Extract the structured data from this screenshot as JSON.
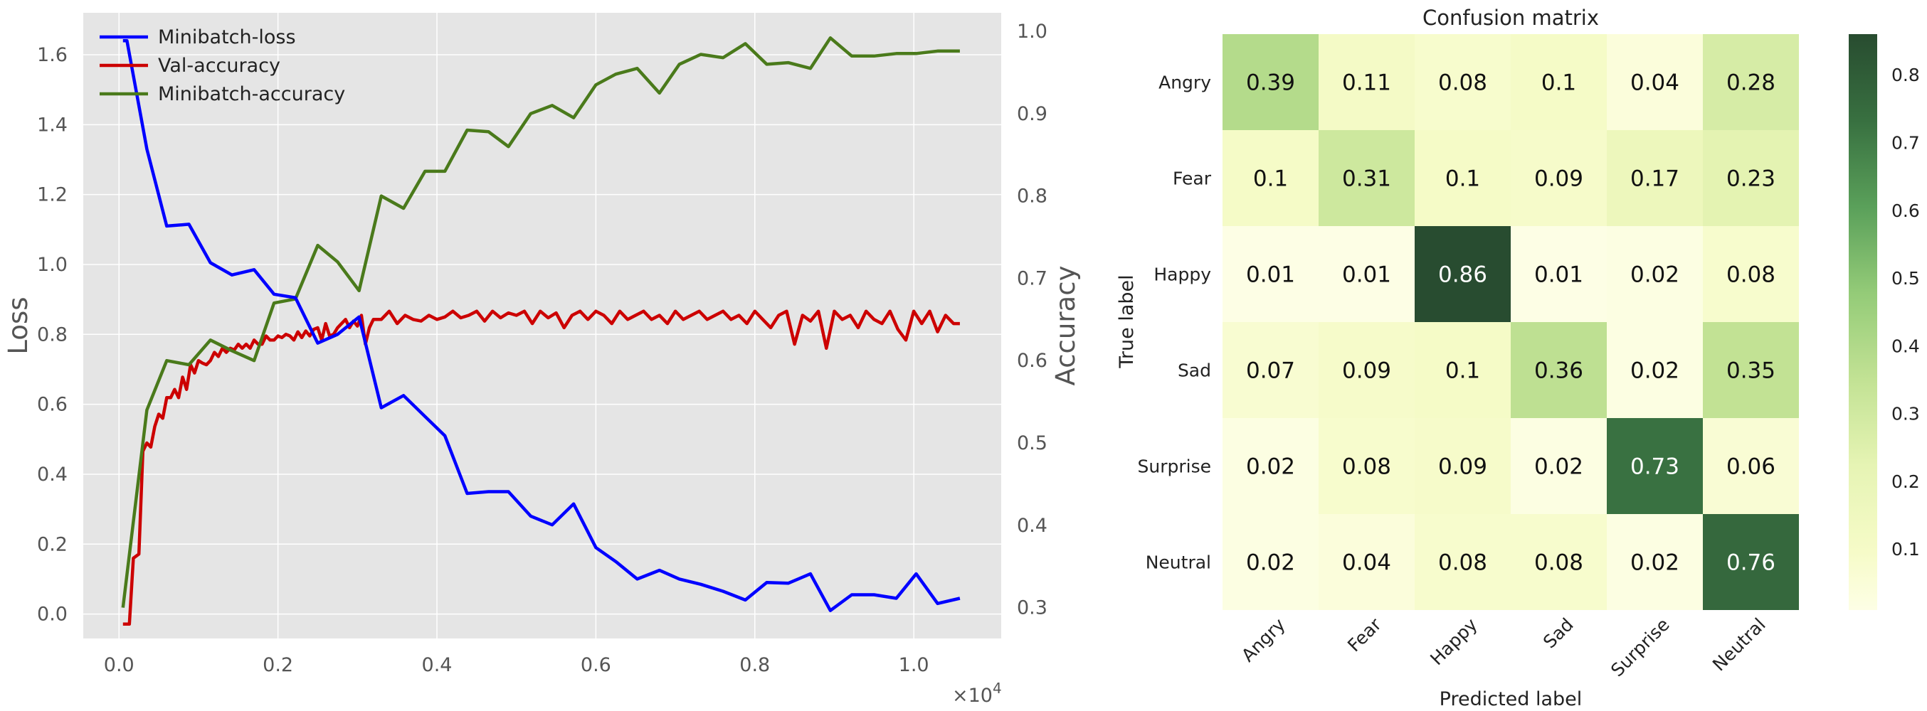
{
  "chart_data": [
    {
      "type": "line",
      "xlabel": "",
      "x_scale_label": "×10",
      "x_scale_exponent": "4",
      "ylabel": "Loss",
      "y2label": "Accuracy",
      "xlim": [
        -0.045,
        1.11
      ],
      "ylim": [
        -0.07,
        1.72
      ],
      "y2lim": [
        0.2625,
        1.0225
      ],
      "xticks": [
        0.0,
        0.2,
        0.4,
        0.6,
        0.8,
        1.0
      ],
      "xtick_labels": [
        "0.0",
        "0.2",
        "0.4",
        "0.6",
        "0.8",
        "1.0"
      ],
      "yticks": [
        0.0,
        0.2,
        0.4,
        0.6,
        0.8,
        1.0,
        1.2,
        1.4,
        1.6
      ],
      "ytick_labels": [
        "0.0",
        "0.2",
        "0.4",
        "0.6",
        "0.8",
        "1.0",
        "1.2",
        "1.4",
        "1.6"
      ],
      "y2ticks": [
        0.3,
        0.4,
        0.5,
        0.6,
        0.7,
        0.8,
        0.9,
        1.0
      ],
      "y2tick_labels": [
        "0.3",
        "0.4",
        "0.5",
        "0.6",
        "0.7",
        "0.8",
        "0.9",
        "1.0"
      ],
      "legend": "top-left",
      "series": [
        {
          "name": "Minibatch-loss",
          "axis": "left",
          "color": "#0000ff",
          "x": [
            0.005,
            0.01,
            0.035,
            0.06,
            0.088,
            0.115,
            0.142,
            0.17,
            0.195,
            0.222,
            0.25,
            0.275,
            0.302,
            0.33,
            0.358,
            0.385,
            0.41,
            0.438,
            0.465,
            0.49,
            0.518,
            0.545,
            0.572,
            0.6,
            0.625,
            0.652,
            0.68,
            0.705,
            0.732,
            0.76,
            0.788,
            0.815,
            0.842,
            0.87,
            0.895,
            0.922,
            0.95,
            0.978,
            1.003,
            1.03,
            1.058
          ],
          "values": [
            1.64,
            1.64,
            1.33,
            1.11,
            1.115,
            1.005,
            0.97,
            0.985,
            0.915,
            0.905,
            0.775,
            0.8,
            0.85,
            0.59,
            0.625,
            0.565,
            0.51,
            0.345,
            0.35,
            0.35,
            0.28,
            0.255,
            0.315,
            0.19,
            0.15,
            0.1,
            0.125,
            0.1,
            0.085,
            0.065,
            0.04,
            0.09,
            0.088,
            0.115,
            0.01,
            0.055,
            0.055,
            0.045,
            0.115,
            0.03,
            0.045
          ]
        },
        {
          "name": "Val-accuracy",
          "axis": "right",
          "color": "#cc0000",
          "x": [
            0.005,
            0.013,
            0.018,
            0.025,
            0.03,
            0.035,
            0.04,
            0.045,
            0.05,
            0.055,
            0.06,
            0.065,
            0.07,
            0.075,
            0.08,
            0.085,
            0.09,
            0.095,
            0.1,
            0.105,
            0.11,
            0.115,
            0.12,
            0.125,
            0.13,
            0.135,
            0.14,
            0.145,
            0.15,
            0.155,
            0.16,
            0.165,
            0.17,
            0.175,
            0.18,
            0.185,
            0.19,
            0.195,
            0.2,
            0.205,
            0.21,
            0.215,
            0.22,
            0.225,
            0.23,
            0.235,
            0.24,
            0.245,
            0.25,
            0.255,
            0.26,
            0.265,
            0.27,
            0.275,
            0.28,
            0.285,
            0.29,
            0.295,
            0.3,
            0.305,
            0.31,
            0.315,
            0.32,
            0.33,
            0.34,
            0.35,
            0.36,
            0.37,
            0.38,
            0.39,
            0.4,
            0.41,
            0.42,
            0.43,
            0.44,
            0.45,
            0.46,
            0.47,
            0.48,
            0.49,
            0.5,
            0.51,
            0.52,
            0.53,
            0.54,
            0.55,
            0.56,
            0.57,
            0.58,
            0.59,
            0.6,
            0.61,
            0.62,
            0.63,
            0.64,
            0.65,
            0.66,
            0.67,
            0.68,
            0.69,
            0.7,
            0.71,
            0.72,
            0.73,
            0.74,
            0.75,
            0.76,
            0.77,
            0.78,
            0.79,
            0.8,
            0.81,
            0.82,
            0.83,
            0.84,
            0.85,
            0.86,
            0.87,
            0.88,
            0.89,
            0.9,
            0.91,
            0.92,
            0.93,
            0.94,
            0.95,
            0.96,
            0.97,
            0.98,
            0.99,
            1.0,
            1.01,
            1.02,
            1.03,
            1.04,
            1.05,
            1.058
          ],
          "values": [
            0.28,
            0.28,
            0.36,
            0.365,
            0.49,
            0.5,
            0.495,
            0.52,
            0.535,
            0.53,
            0.555,
            0.555,
            0.565,
            0.555,
            0.58,
            0.565,
            0.595,
            0.585,
            0.6,
            0.597,
            0.595,
            0.6,
            0.61,
            0.605,
            0.615,
            0.61,
            0.615,
            0.613,
            0.62,
            0.615,
            0.62,
            0.615,
            0.625,
            0.62,
            0.62,
            0.63,
            0.625,
            0.625,
            0.63,
            0.628,
            0.632,
            0.63,
            0.625,
            0.635,
            0.628,
            0.636,
            0.63,
            0.638,
            0.64,
            0.625,
            0.645,
            0.63,
            0.632,
            0.64,
            0.645,
            0.65,
            0.64,
            0.648,
            0.642,
            0.655,
            0.62,
            0.64,
            0.65,
            0.65,
            0.66,
            0.645,
            0.655,
            0.65,
            0.648,
            0.655,
            0.65,
            0.653,
            0.66,
            0.652,
            0.655,
            0.66,
            0.648,
            0.66,
            0.652,
            0.658,
            0.655,
            0.66,
            0.645,
            0.66,
            0.652,
            0.658,
            0.64,
            0.655,
            0.66,
            0.65,
            0.66,
            0.655,
            0.645,
            0.66,
            0.65,
            0.655,
            0.66,
            0.65,
            0.655,
            0.645,
            0.66,
            0.65,
            0.655,
            0.66,
            0.65,
            0.655,
            0.66,
            0.65,
            0.655,
            0.645,
            0.66,
            0.65,
            0.64,
            0.655,
            0.66,
            0.62,
            0.655,
            0.648,
            0.66,
            0.615,
            0.66,
            0.65,
            0.655,
            0.64,
            0.66,
            0.65,
            0.645,
            0.66,
            0.638,
            0.625,
            0.66,
            0.645,
            0.66,
            0.635,
            0.655,
            0.645,
            0.645
          ]
        },
        {
          "name": "Minibatch-accuracy",
          "axis": "right",
          "color": "#4a7a1b",
          "x": [
            0.005,
            0.035,
            0.06,
            0.088,
            0.115,
            0.142,
            0.17,
            0.195,
            0.222,
            0.25,
            0.275,
            0.302,
            0.33,
            0.358,
            0.385,
            0.41,
            0.438,
            0.465,
            0.49,
            0.518,
            0.545,
            0.572,
            0.6,
            0.625,
            0.652,
            0.68,
            0.705,
            0.732,
            0.76,
            0.788,
            0.815,
            0.842,
            0.87,
            0.895,
            0.922,
            0.95,
            0.978,
            1.003,
            1.03,
            1.058
          ],
          "values": [
            0.3,
            0.54,
            0.6,
            0.595,
            0.625,
            0.612,
            0.6,
            0.67,
            0.675,
            0.74,
            0.72,
            0.685,
            0.8,
            0.785,
            0.83,
            0.83,
            0.88,
            0.878,
            0.86,
            0.9,
            0.91,
            0.895,
            0.935,
            0.948,
            0.955,
            0.925,
            0.96,
            0.972,
            0.968,
            0.985,
            0.96,
            0.962,
            0.955,
            0.992,
            0.97,
            0.97,
            0.973,
            0.973,
            0.976,
            0.976
          ]
        }
      ]
    },
    {
      "type": "heatmap",
      "title": "Confusion matrix",
      "xlabel": "Predicted label",
      "ylabel": "True label",
      "x_categories": [
        "Angry",
        "Fear",
        "Happy",
        "Sad",
        "Surprise",
        "Neutral"
      ],
      "y_categories": [
        "Angry",
        "Fear",
        "Happy",
        "Sad",
        "Surprise",
        "Neutral"
      ],
      "values": [
        [
          0.39,
          0.11,
          0.08,
          0.1,
          0.04,
          0.28
        ],
        [
          0.1,
          0.31,
          0.1,
          0.09,
          0.17,
          0.23
        ],
        [
          0.01,
          0.01,
          0.86,
          0.01,
          0.02,
          0.08
        ],
        [
          0.07,
          0.09,
          0.1,
          0.36,
          0.02,
          0.35
        ],
        [
          0.02,
          0.08,
          0.09,
          0.02,
          0.73,
          0.06
        ],
        [
          0.02,
          0.04,
          0.08,
          0.08,
          0.02,
          0.76
        ]
      ],
      "value_labels": [
        [
          "0.39",
          "0.11",
          "0.08",
          "0.1",
          "0.04",
          "0.28"
        ],
        [
          "0.1",
          "0.31",
          "0.1",
          "0.09",
          "0.17",
          "0.23"
        ],
        [
          "0.01",
          "0.01",
          "0.86",
          "0.01",
          "0.02",
          "0.08"
        ],
        [
          "0.07",
          "0.09",
          "0.1",
          "0.36",
          "0.02",
          "0.35"
        ],
        [
          "0.02",
          "0.08",
          "0.09",
          "0.02",
          "0.73",
          "0.06"
        ],
        [
          "0.02",
          "0.04",
          "0.08",
          "0.08",
          "0.02",
          "0.76"
        ]
      ],
      "colormap": "YlGn",
      "colorbar_range": [
        0.01,
        0.86
      ],
      "colorbar_ticks": [
        0.1,
        0.2,
        0.3,
        0.4,
        0.5,
        0.6,
        0.7,
        0.8
      ],
      "colorbar_tick_labels": [
        "0.1",
        "0.2",
        "0.3",
        "0.4",
        "0.5",
        "0.6",
        "0.7",
        "0.8"
      ]
    }
  ]
}
